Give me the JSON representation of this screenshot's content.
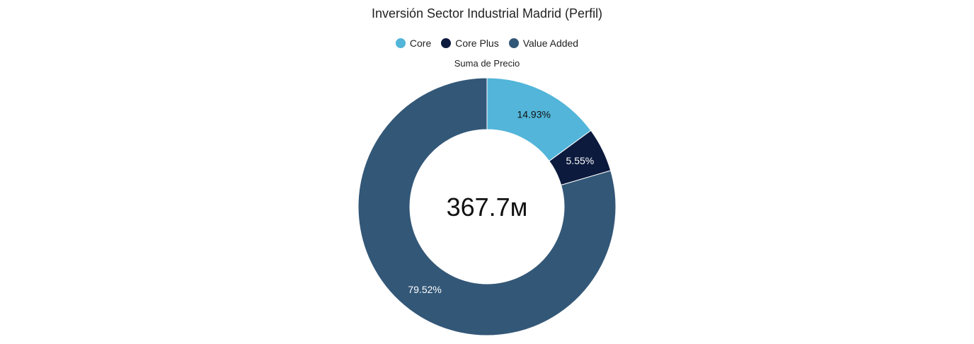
{
  "chart_data": {
    "type": "pie",
    "title": "Inversión Sector Industrial Madrid (Perfil)",
    "subtitle": "Suma de Precio",
    "center_label": "367.7м",
    "legend_position": "top",
    "categories": [
      "Core",
      "Core Plus",
      "Value Added"
    ],
    "values": [
      14.93,
      5.55,
      79.52
    ],
    "labels": [
      "14.93%",
      "5.55%",
      "79.52%"
    ],
    "colors": [
      "#52b5d9",
      "#0b1a3d",
      "#335777"
    ],
    "label_colors": [
      "#111111",
      "#ffffff",
      "#ffffff"
    ]
  }
}
